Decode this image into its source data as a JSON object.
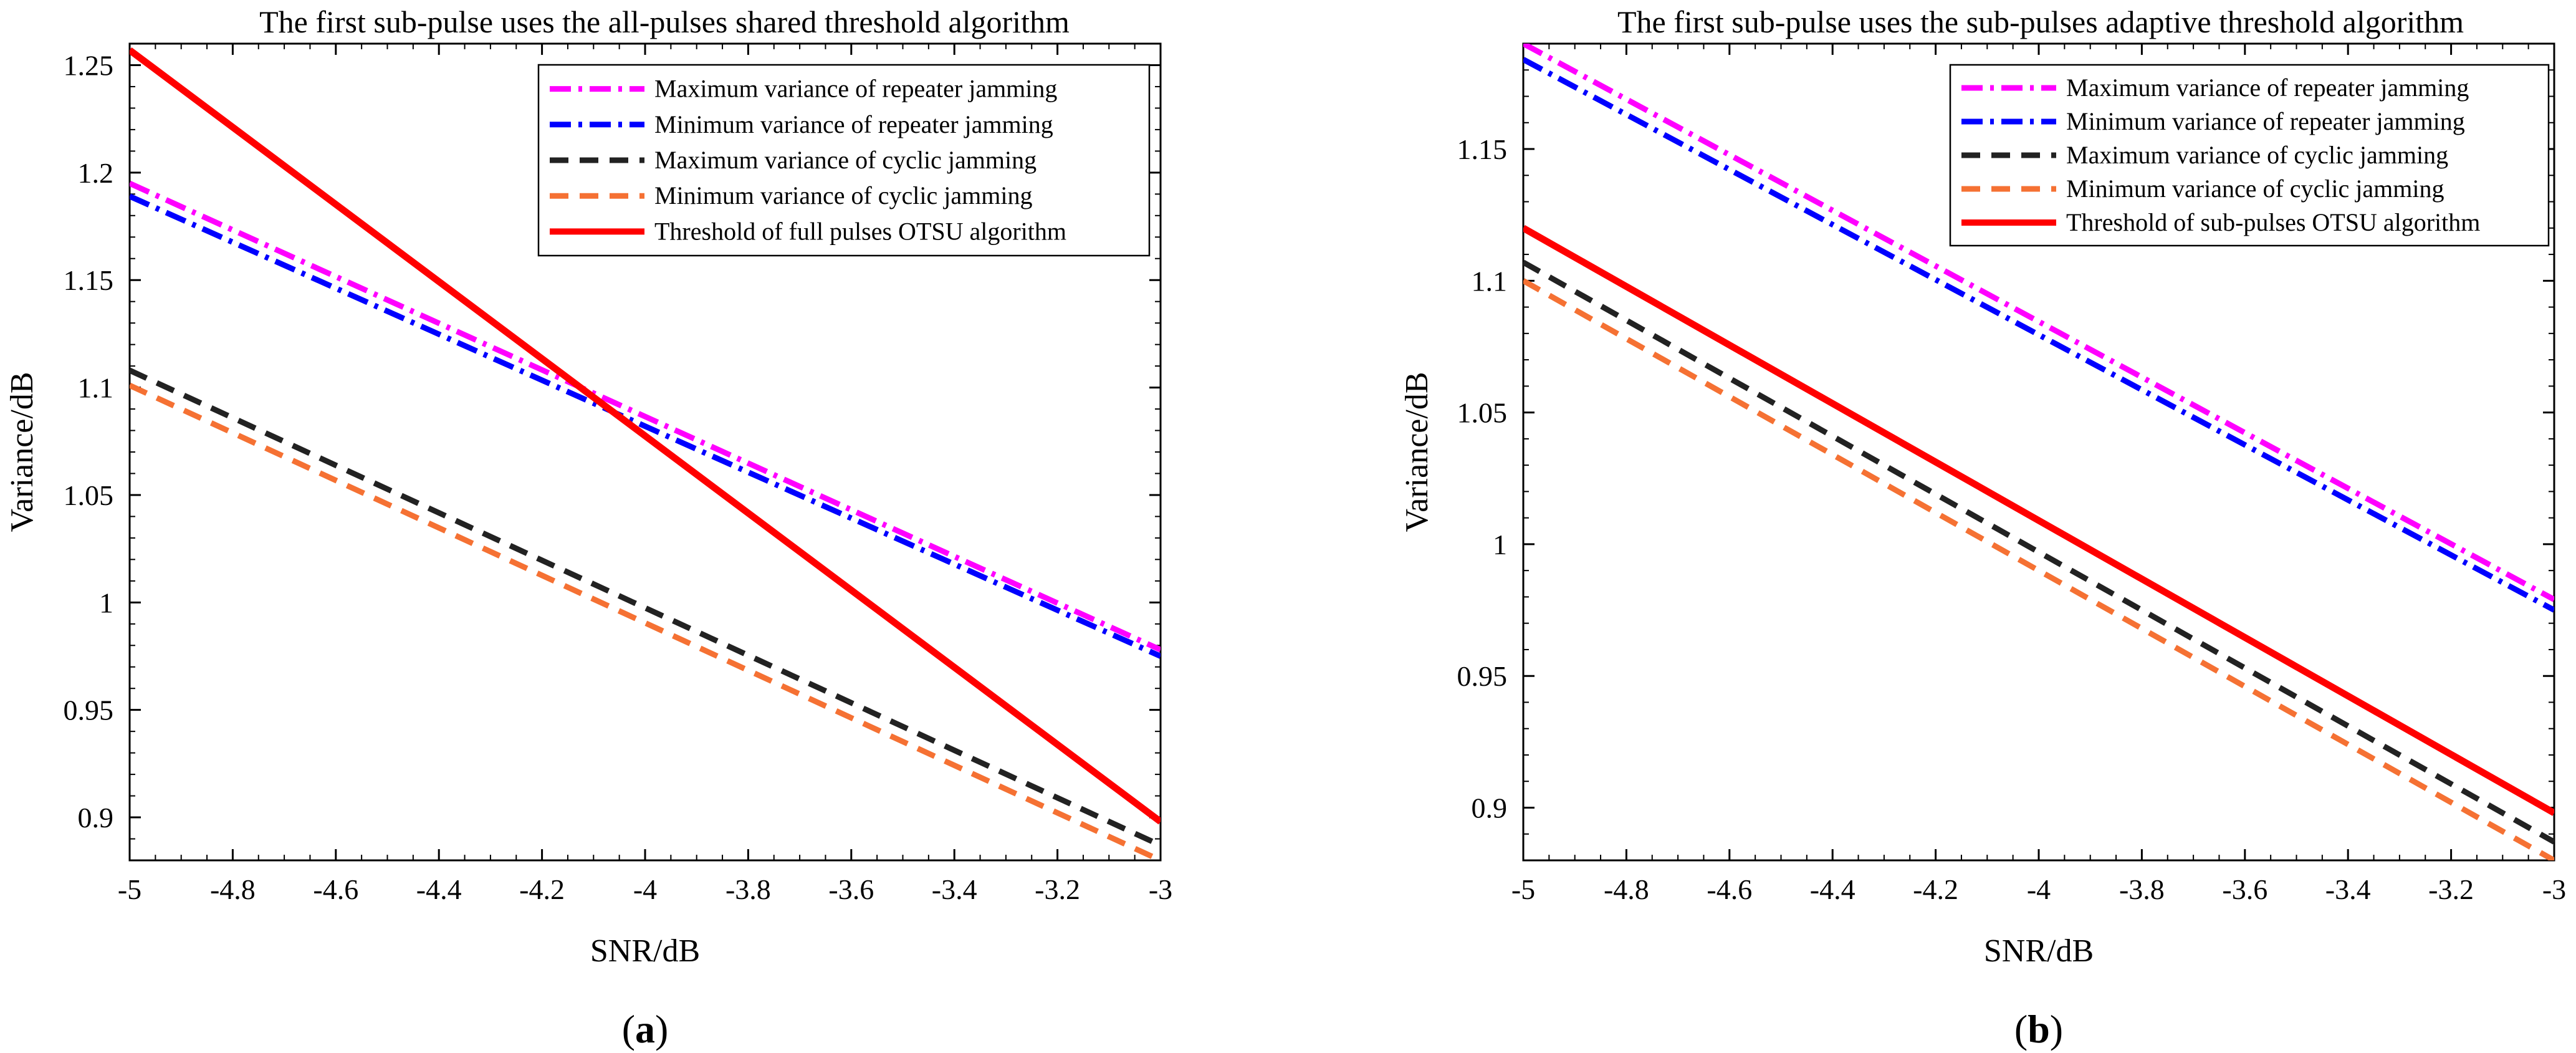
{
  "chart_data": [
    {
      "type": "line",
      "panel_label": "a",
      "title": "The first sub-pulse uses the all-pulses shared threshold algorithm",
      "xlabel": "SNR/dB",
      "ylabel": "Variance/dB",
      "xlim": [
        -5,
        -3
      ],
      "ylim": [
        0.88,
        1.26
      ],
      "xticks": [
        -5,
        -4.8,
        -4.6,
        -4.4,
        -4.2,
        -4,
        -3.8,
        -3.6,
        -3.4,
        -3.2,
        -3
      ],
      "xtick_labels": [
        "-5",
        "-4.8",
        "-4.6",
        "-4.4",
        "-4.2",
        "-4",
        "-3.8",
        "-3.6",
        "-3.4",
        "-3.2",
        "-3"
      ],
      "yticks": [
        0.9,
        0.95,
        1,
        1.05,
        1.1,
        1.15,
        1.2,
        1.25
      ],
      "ytick_labels": [
        "0.9",
        "0.95",
        "1",
        "1.05",
        "1.1",
        "1.15",
        "1.2",
        "1.25"
      ],
      "grid": false,
      "legend_position": "top-right",
      "series": [
        {
          "name": "Maximum variance of repeater jamming",
          "x": [
            -5,
            -3
          ],
          "y": [
            1.195,
            0.978
          ],
          "color": "#ff00ff",
          "style": "dashdot"
        },
        {
          "name": "Minimum variance of repeater jamming",
          "x": [
            -5,
            -3
          ],
          "y": [
            1.189,
            0.975
          ],
          "color": "#0000ff",
          "style": "dashdot"
        },
        {
          "name": "Maximum variance of cyclic jamming",
          "x": [
            -5,
            -3
          ],
          "y": [
            1.108,
            0.887
          ],
          "color": "#222222",
          "style": "dashed"
        },
        {
          "name": "Minimum variance of cyclic jamming",
          "x": [
            -5,
            -3
          ],
          "y": [
            1.101,
            0.88
          ],
          "color": "#f57133",
          "style": "dashed"
        },
        {
          "name": "Threshold of full pulses OTSU algorithm",
          "x": [
            -5,
            -3
          ],
          "y": [
            1.257,
            0.898
          ],
          "color": "#ff0000",
          "style": "solid"
        }
      ]
    },
    {
      "type": "line",
      "panel_label": "b",
      "title": "The first sub-pulse uses the sub-pulses adaptive threshold algorithm",
      "xlabel": "SNR/dB",
      "ylabel": "Variance/dB",
      "xlim": [
        -5,
        -3
      ],
      "ylim": [
        0.88,
        1.19
      ],
      "xticks": [
        -5,
        -4.8,
        -4.6,
        -4.4,
        -4.2,
        -4,
        -3.8,
        -3.6,
        -3.4,
        -3.2,
        -3
      ],
      "xtick_labels": [
        "-5",
        "-4.8",
        "-4.6",
        "-4.4",
        "-4.2",
        "-4",
        "-3.8",
        "-3.6",
        "-3.4",
        "-3.2",
        "-3"
      ],
      "yticks": [
        0.9,
        0.95,
        1,
        1.05,
        1.1,
        1.15
      ],
      "ytick_labels": [
        "0.9",
        "0.95",
        "1",
        "1.05",
        "1.1",
        "1.15"
      ],
      "grid": false,
      "legend_position": "top-right",
      "series": [
        {
          "name": "Maximum variance of repeater jamming",
          "x": [
            -5,
            -3
          ],
          "y": [
            1.19,
            0.979
          ],
          "color": "#ff00ff",
          "style": "dashdot"
        },
        {
          "name": "Minimum variance of repeater jamming",
          "x": [
            -5,
            -3
          ],
          "y": [
            1.184,
            0.975
          ],
          "color": "#0000ff",
          "style": "dashdot"
        },
        {
          "name": "Maximum variance of cyclic jamming",
          "x": [
            -5,
            -3
          ],
          "y": [
            1.107,
            0.887
          ],
          "color": "#222222",
          "style": "dashed"
        },
        {
          "name": "Minimum variance of cyclic jamming",
          "x": [
            -5,
            -3
          ],
          "y": [
            1.1,
            0.88
          ],
          "color": "#f57133",
          "style": "dashed"
        },
        {
          "name": "Threshold of sub-pulses OTSU algorithm",
          "x": [
            -5,
            -3
          ],
          "y": [
            1.12,
            0.898
          ],
          "color": "#ff0000",
          "style": "solid"
        }
      ]
    }
  ]
}
